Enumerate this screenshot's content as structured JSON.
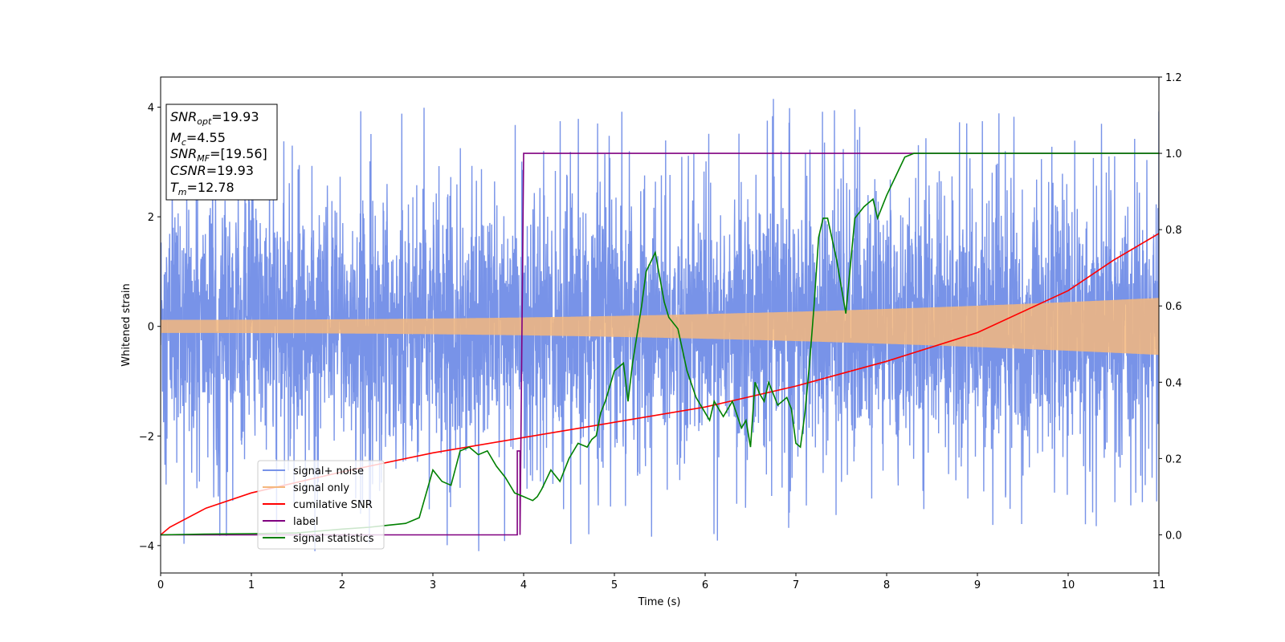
{
  "chart_data": {
    "type": "line",
    "xlabel": "Time (s)",
    "ylabel": "Whitened strain",
    "xlim": [
      0,
      11
    ],
    "ylim": [
      -4.5,
      4.55
    ],
    "y2lim": [
      -0.1,
      1.2
    ],
    "xticks": [
      0,
      1,
      2,
      3,
      4,
      5,
      6,
      7,
      8,
      9,
      10,
      11
    ],
    "yticks": [
      -4,
      -2,
      0,
      2,
      4
    ],
    "y2ticks": [
      "0.0",
      "0.2",
      "0.4",
      "0.6",
      "0.8",
      "1.0",
      "1.2"
    ],
    "legend_position": "lower-left",
    "annotation_lines": [
      {
        "var": "SNR",
        "sub": "opt",
        "value": "=19.93"
      },
      {
        "var": "M",
        "sub": "c",
        "value": "=4.55"
      },
      {
        "var": "SNR",
        "sub": "MF",
        "value": "=[19.56]"
      },
      {
        "var": "CSNR",
        "sub": "",
        "value": "=19.93"
      },
      {
        "var": "T",
        "sub": "m",
        "value": "=12.78"
      }
    ],
    "series": [
      {
        "name": "signal+ noise",
        "color": "#7893e8",
        "axis": "left",
        "style": "dense-noise",
        "noise_sigma": 1.1,
        "envelope_min": 4.1,
        "envelope_max": 4.15
      },
      {
        "name": "signal only",
        "color": "#f5b77d",
        "axis": "left",
        "style": "chirp-envelope",
        "amplitude_start": 0.12,
        "amplitude_end": 0.52
      },
      {
        "name": "cumilative SNR",
        "color": "#ff0000",
        "axis": "right",
        "x": [
          0,
          0.1,
          0.5,
          1,
          2,
          3,
          4,
          5,
          6,
          7,
          8,
          9,
          10,
          10.5,
          11
        ],
        "y": [
          0.0,
          0.02,
          0.07,
          0.11,
          0.165,
          0.215,
          0.255,
          0.295,
          0.335,
          0.39,
          0.455,
          0.53,
          0.64,
          0.72,
          0.79
        ]
      },
      {
        "name": "label",
        "color": "#800080",
        "axis": "right",
        "x": [
          0,
          3.93,
          3.93,
          3.96,
          3.96,
          4.0,
          11
        ],
        "y": [
          0.0,
          0.0,
          0.22,
          0.22,
          0.0,
          1.0,
          1.0
        ]
      },
      {
        "name": "signal statistics",
        "color": "#008000",
        "axis": "right",
        "x": [
          0,
          0.5,
          1,
          1.5,
          2,
          2.3,
          2.5,
          2.7,
          2.85,
          3.0,
          3.1,
          3.2,
          3.3,
          3.4,
          3.5,
          3.6,
          3.7,
          3.8,
          3.9,
          4.0,
          4.05,
          4.1,
          4.15,
          4.2,
          4.3,
          4.4,
          4.5,
          4.6,
          4.7,
          4.75,
          4.8,
          4.85,
          4.9,
          5.0,
          5.1,
          5.15,
          5.2,
          5.3,
          5.35,
          5.45,
          5.55,
          5.6,
          5.7,
          5.8,
          5.9,
          6.0,
          6.05,
          6.1,
          6.2,
          6.3,
          6.4,
          6.45,
          6.5,
          6.55,
          6.6,
          6.65,
          6.7,
          6.8,
          6.9,
          6.95,
          7.0,
          7.05,
          7.1,
          7.15,
          7.2,
          7.25,
          7.3,
          7.35,
          7.45,
          7.55,
          7.65,
          7.75,
          7.85,
          7.9,
          8.0,
          8.1,
          8.2,
          8.3,
          8.5,
          8.8,
          9.0,
          9.5,
          10.0,
          10.5,
          11.0
        ],
        "y": [
          0.0,
          0.002,
          0.003,
          0.005,
          0.015,
          0.02,
          0.025,
          0.03,
          0.045,
          0.17,
          0.14,
          0.13,
          0.22,
          0.23,
          0.21,
          0.22,
          0.18,
          0.15,
          0.11,
          0.1,
          0.095,
          0.09,
          0.1,
          0.12,
          0.17,
          0.14,
          0.2,
          0.24,
          0.23,
          0.25,
          0.26,
          0.32,
          0.35,
          0.43,
          0.45,
          0.35,
          0.45,
          0.6,
          0.69,
          0.74,
          0.61,
          0.57,
          0.54,
          0.43,
          0.36,
          0.32,
          0.3,
          0.35,
          0.31,
          0.35,
          0.28,
          0.3,
          0.23,
          0.4,
          0.37,
          0.35,
          0.4,
          0.34,
          0.36,
          0.33,
          0.24,
          0.23,
          0.32,
          0.45,
          0.6,
          0.78,
          0.83,
          0.83,
          0.72,
          0.58,
          0.83,
          0.86,
          0.88,
          0.83,
          0.89,
          0.94,
          0.99,
          1.0,
          1.0,
          1.0,
          1.0,
          1.0,
          1.0,
          1.0,
          1.0
        ]
      }
    ]
  }
}
